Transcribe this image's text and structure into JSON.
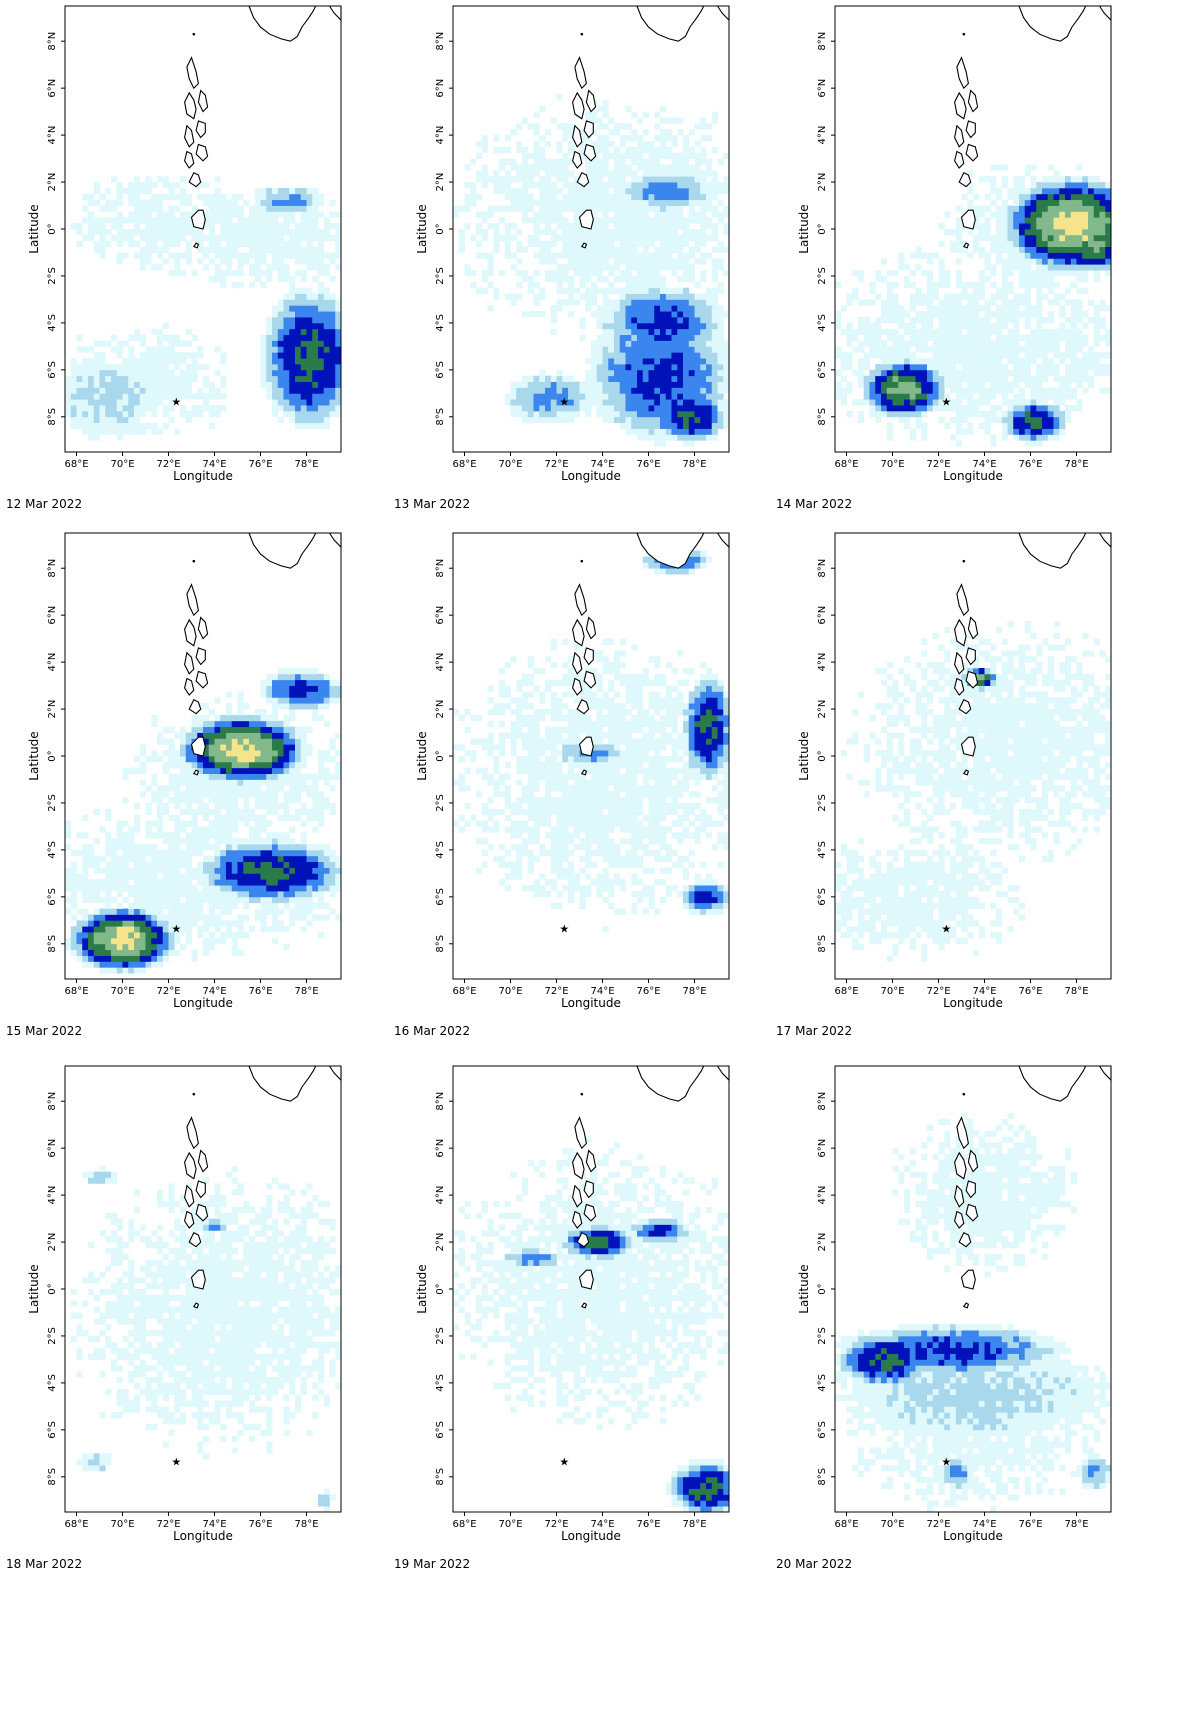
{
  "legend_colors": {
    "light_cyan": "#dff8fb",
    "light_blue": "#a9d8ec",
    "mid_blue": "#3b86ee",
    "dark_blue": "#0012b8",
    "dark_green": "#2b7a4a",
    "light_green": "#82b88a",
    "yellow": "#f6e48c",
    "land_outline": "#000000"
  },
  "chart_data": [
    {
      "type": "heatmap",
      "date": "12 Mar 2022",
      "xlabel": "Longitude",
      "ylabel": "Latitude",
      "xticks": [
        "68°E",
        "70°E",
        "72°E",
        "74°E",
        "76°E",
        "78°E"
      ],
      "yticks": [
        "8°N",
        "6°N",
        "4°N",
        "2°N",
        "0°",
        "2°S",
        "4°S",
        "6°S",
        "8°S"
      ],
      "xlim": [
        67.5,
        79.5
      ],
      "ylim": [
        -9.5,
        9.5
      ]
    },
    {
      "type": "heatmap",
      "date": "13 Mar 2022",
      "xlabel": "Longitude",
      "ylabel": "Latitude",
      "xticks": [
        "68°E",
        "70°E",
        "72°E",
        "74°E",
        "76°E",
        "78°E"
      ],
      "yticks": [
        "8°N",
        "6°N",
        "4°N",
        "2°N",
        "0°",
        "2°S",
        "4°S",
        "6°S",
        "8°S"
      ],
      "xlim": [
        67.5,
        79.5
      ],
      "ylim": [
        -9.5,
        9.5
      ]
    },
    {
      "type": "heatmap",
      "date": "14 Mar 2022",
      "xlabel": "Longitude",
      "ylabel": "Latitude",
      "xticks": [
        "68°E",
        "70°E",
        "72°E",
        "74°E",
        "76°E",
        "78°E"
      ],
      "yticks": [
        "8°N",
        "6°N",
        "4°N",
        "2°N",
        "0°",
        "2°S",
        "4°S",
        "6°S",
        "8°S"
      ],
      "xlim": [
        67.5,
        79.5
      ],
      "ylim": [
        -9.5,
        9.5
      ]
    },
    {
      "type": "heatmap",
      "date": "15 Mar 2022",
      "xlabel": "Longitude",
      "ylabel": "Latitude",
      "xticks": [
        "68°E",
        "70°E",
        "72°E",
        "74°E",
        "76°E",
        "78°E"
      ],
      "yticks": [
        "8°N",
        "6°N",
        "4°N",
        "2°N",
        "0°",
        "2°S",
        "4°S",
        "6°S",
        "8°S"
      ],
      "xlim": [
        67.5,
        79.5
      ],
      "ylim": [
        -9.5,
        9.5
      ]
    },
    {
      "type": "heatmap",
      "date": "16 Mar 2022",
      "xlabel": "Longitude",
      "ylabel": "Latitude",
      "xticks": [
        "68°E",
        "70°E",
        "72°E",
        "74°E",
        "76°E",
        "78°E"
      ],
      "yticks": [
        "8°N",
        "6°N",
        "4°N",
        "2°N",
        "0°",
        "2°S",
        "4°S",
        "6°S",
        "8°S"
      ],
      "xlim": [
        67.5,
        79.5
      ],
      "ylim": [
        -9.5,
        9.5
      ]
    },
    {
      "type": "heatmap",
      "date": "17 Mar 2022",
      "xlabel": "Longitude",
      "ylabel": "Latitude",
      "xticks": [
        "68°E",
        "70°E",
        "72°E",
        "74°E",
        "76°E",
        "78°E"
      ],
      "yticks": [
        "8°N",
        "6°N",
        "4°N",
        "2°N",
        "0°",
        "2°S",
        "4°S",
        "6°S",
        "8°S"
      ],
      "xlim": [
        67.5,
        79.5
      ],
      "ylim": [
        -9.5,
        9.5
      ]
    },
    {
      "type": "heatmap",
      "date": "18 Mar 2022",
      "xlabel": "Longitude",
      "ylabel": "Latitude",
      "xticks": [
        "68°E",
        "70°E",
        "72°E",
        "74°E",
        "76°E",
        "78°E"
      ],
      "yticks": [
        "8°N",
        "6°N",
        "4°N",
        "2°N",
        "0°",
        "2°S",
        "4°S",
        "6°S",
        "8°S"
      ],
      "xlim": [
        67.5,
        79.5
      ],
      "ylim": [
        -9.5,
        9.5
      ]
    },
    {
      "type": "heatmap",
      "date": "19 Mar 2022",
      "xlabel": "Longitude",
      "ylabel": "Latitude",
      "xticks": [
        "68°E",
        "70°E",
        "72°E",
        "74°E",
        "76°E",
        "78°E"
      ],
      "yticks": [
        "8°N",
        "6°N",
        "4°N",
        "2°N",
        "0°",
        "2°S",
        "4°S",
        "6°S",
        "8°S"
      ],
      "xlim": [
        67.5,
        79.5
      ],
      "ylim": [
        -9.5,
        9.5
      ]
    },
    {
      "type": "heatmap",
      "date": "20 Mar 2022",
      "xlabel": "Longitude",
      "ylabel": "Latitude",
      "xticks": [
        "68°E",
        "70°E",
        "72°E",
        "74°E",
        "76°E",
        "78°E"
      ],
      "yticks": [
        "8°N",
        "6°N",
        "4°N",
        "2°N",
        "0°",
        "2°S",
        "4°S",
        "6°S",
        "8°S"
      ],
      "xlim": [
        67.5,
        79.5
      ],
      "ylim": [
        -9.5,
        9.5
      ]
    }
  ]
}
